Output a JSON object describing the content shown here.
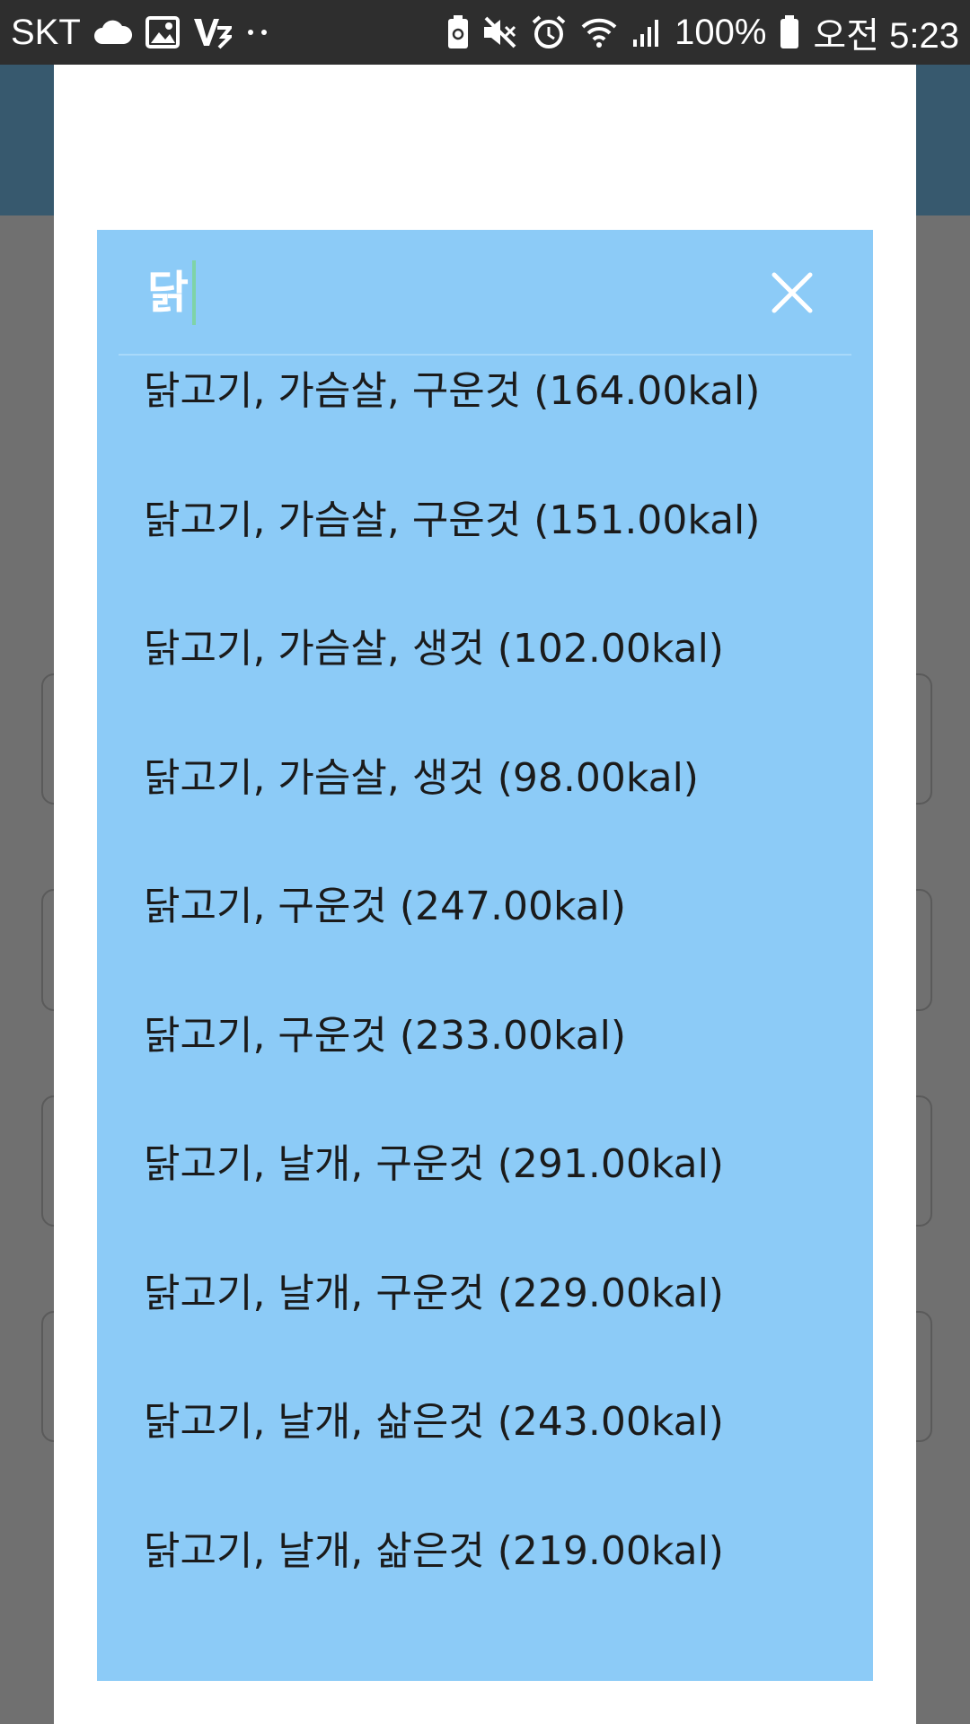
{
  "status_bar": {
    "carrier": "SKT",
    "left_icons": [
      "cloud-icon",
      "image-icon",
      "v3-icon",
      "more-dots-icon"
    ],
    "right_icons": [
      "battery-saver-icon",
      "mute-icon",
      "alarm-icon",
      "wifi-icon",
      "signal-icon"
    ],
    "battery_percent": "100%",
    "time": "오전 5:23"
  },
  "search": {
    "query": "닭",
    "close_icon": "close-icon"
  },
  "results": [
    "닭고기, 가슴살, 구운것 (164.00kal)",
    "닭고기, 가슴살, 구운것 (151.00kal)",
    "닭고기, 가슴살, 생것 (102.00kal)",
    "닭고기, 가슴살, 생것 (98.00kal)",
    "닭고기, 구운것 (247.00kal)",
    "닭고기, 구운것 (233.00kal)",
    "닭고기, 날개, 구운것 (291.00kal)",
    "닭고기, 날개, 구운것 (229.00kal)",
    "닭고기, 날개, 삶은것 (243.00kal)",
    "닭고기, 날개, 삶은것 (219.00kal)"
  ],
  "colors": {
    "panel": "#8ccbf7",
    "status_bar": "#2e2e2e",
    "dialog": "#ffffff",
    "app_bar": "#37596e"
  }
}
